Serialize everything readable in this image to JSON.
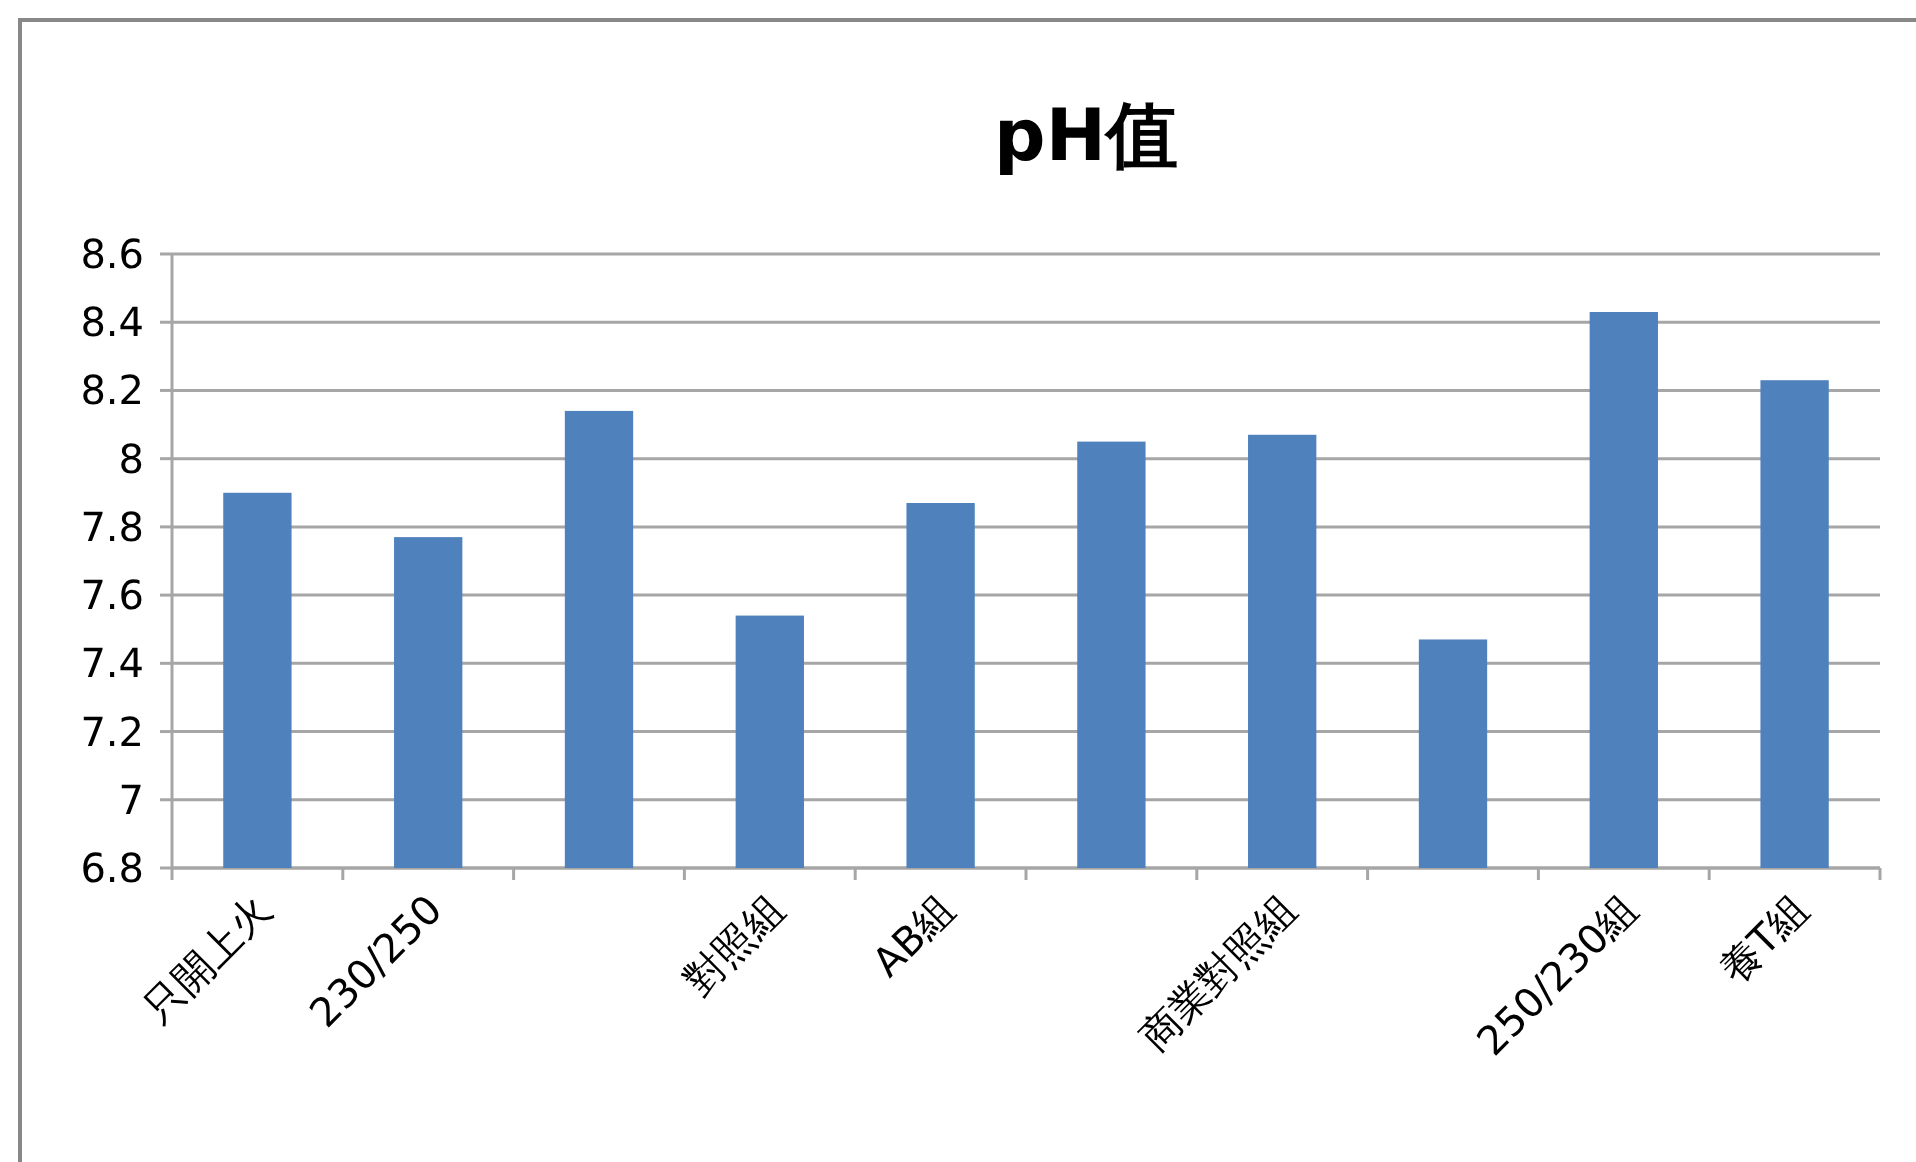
{
  "chart_data": {
    "type": "bar",
    "title": "pH值",
    "categories": [
      "只開上火",
      "230/250",
      null,
      "對照組",
      "AB組",
      null,
      "商業對照組",
      null,
      "250/230組",
      "養T組"
    ],
    "values": [
      7.9,
      7.77,
      8.14,
      7.54,
      7.87,
      8.05,
      8.07,
      7.47,
      8.43,
      8.23
    ],
    "color": "#4f81bd",
    "ylim": [
      6.8,
      8.6
    ],
    "yticks": [
      {
        "value": 6.8,
        "label": "6.8"
      },
      {
        "value": 7,
        "label": "7"
      },
      {
        "value": 7.2,
        "label": "7.2"
      },
      {
        "value": 7.4,
        "label": "7.4"
      },
      {
        "value": 7.6,
        "label": "7.6"
      },
      {
        "value": 7.8,
        "label": "7.8"
      },
      {
        "value": 8,
        "label": "8"
      },
      {
        "value": 8.2,
        "label": "8.2"
      },
      {
        "value": 8.4,
        "label": "8.4"
      },
      {
        "value": 8.6,
        "label": "8.6"
      }
    ],
    "grid": "y",
    "legend": false
  }
}
